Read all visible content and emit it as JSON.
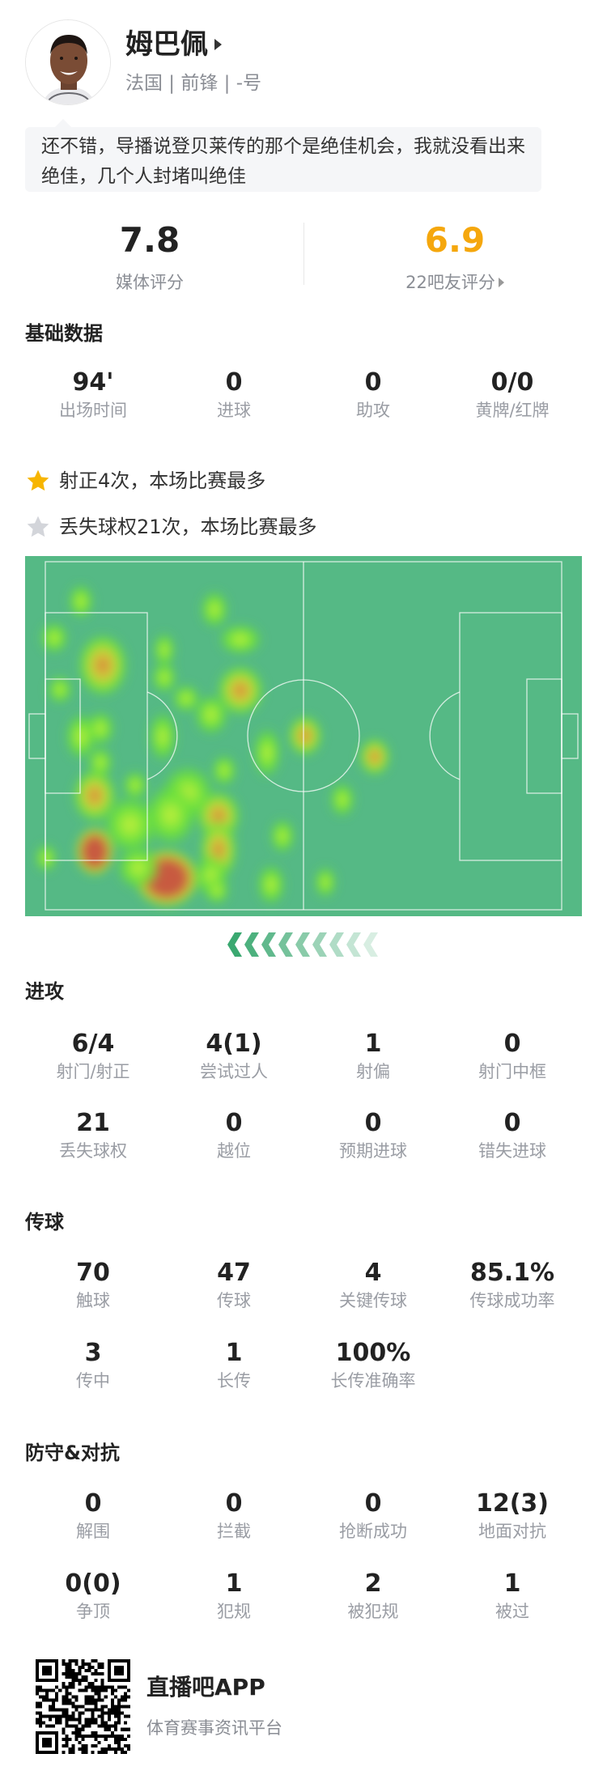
{
  "player": {
    "name": "姆巴佩",
    "subtitle": "法国 | 前锋 | -号",
    "comment": "还不错，导播说登贝莱传的那个是绝佳机会，我就没看出来绝佳，几个人封堵叫绝佳"
  },
  "ratings": {
    "media": {
      "value": "7.8",
      "label": "媒体评分"
    },
    "fans": {
      "value": "6.9",
      "label": "22吧友评分",
      "color": "#f5a70d"
    }
  },
  "basic": {
    "title": "基础数据",
    "items": [
      {
        "value": "94'",
        "label": "出场时间"
      },
      {
        "value": "0",
        "label": "进球"
      },
      {
        "value": "0",
        "label": "助攻"
      },
      {
        "value": "0/0",
        "label": "黄牌/红牌"
      }
    ]
  },
  "highlights": [
    {
      "icon": "star-gold-icon",
      "text": "射正4次，本场比赛最多",
      "color": "#f7b500"
    },
    {
      "icon": "star-gray-icon",
      "text": "丢失球权21次，本场比赛最多",
      "color": "#d3d5da"
    }
  ],
  "heatmap": {
    "pitch_color": "#55b985",
    "attack_direction": "left"
  },
  "attack": {
    "title": "进攻",
    "items": [
      {
        "value": "6/4",
        "label": "射门/射正"
      },
      {
        "value": "4(1)",
        "label": "尝试过人"
      },
      {
        "value": "1",
        "label": "射偏"
      },
      {
        "value": "0",
        "label": "射门中框"
      },
      {
        "value": "21",
        "label": "丢失球权"
      },
      {
        "value": "0",
        "label": "越位"
      },
      {
        "value": "0",
        "label": "预期进球"
      },
      {
        "value": "0",
        "label": "错失进球"
      }
    ]
  },
  "passing": {
    "title": "传球",
    "items": [
      {
        "value": "70",
        "label": "触球"
      },
      {
        "value": "47",
        "label": "传球"
      },
      {
        "value": "4",
        "label": "关键传球"
      },
      {
        "value": "85.1%",
        "label": "传球成功率"
      },
      {
        "value": "3",
        "label": "传中"
      },
      {
        "value": "1",
        "label": "长传"
      },
      {
        "value": "100%",
        "label": "长传准确率"
      }
    ]
  },
  "defense": {
    "title": "防守&对抗",
    "items": [
      {
        "value": "0",
        "label": "解围"
      },
      {
        "value": "0",
        "label": "拦截"
      },
      {
        "value": "0",
        "label": "抢断成功"
      },
      {
        "value": "12(3)",
        "label": "地面对抗"
      },
      {
        "value": "0(0)",
        "label": "争顶"
      },
      {
        "value": "1",
        "label": "犯规"
      },
      {
        "value": "2",
        "label": "被犯规"
      },
      {
        "value": "1",
        "label": "被过"
      }
    ]
  },
  "footer": {
    "app_name": "直播吧APP",
    "tagline": "体育赛事资讯平台"
  }
}
